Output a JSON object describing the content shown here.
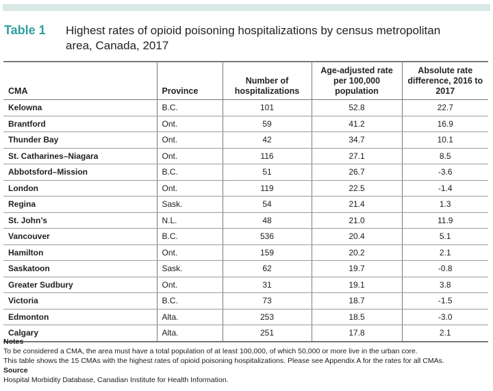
{
  "title": {
    "label": "Table 1",
    "text": "Highest rates of opioid poisoning hospitalizations by census metropolitan area, Canada, 2017"
  },
  "columns": [
    "CMA",
    "Province",
    "Number of hospitalizations",
    "Age-adjusted rate per 100,000 population",
    "Absolute rate difference, 2016 to 2017"
  ],
  "rows": [
    [
      "Kelowna",
      "B.C.",
      "101",
      "52.8",
      "22.7"
    ],
    [
      "Brantford",
      "Ont.",
      "59",
      "41.2",
      "16.9"
    ],
    [
      "Thunder Bay",
      "Ont.",
      "42",
      "34.7",
      "10.1"
    ],
    [
      "St. Catharines–Niagara",
      "Ont.",
      "116",
      "27.1",
      "8.5"
    ],
    [
      "Abbotsford–Mission",
      "B.C.",
      "51",
      "26.7",
      "-3.6"
    ],
    [
      "London",
      "Ont.",
      "119",
      "22.5",
      "-1.4"
    ],
    [
      "Regina",
      "Sask.",
      "54",
      "21.4",
      "1.3"
    ],
    [
      "St. John’s",
      "N.L.",
      "48",
      "21.0",
      "11.9"
    ],
    [
      "Vancouver",
      "B.C.",
      "536",
      "20.4",
      "5.1"
    ],
    [
      "Hamilton",
      "Ont.",
      "159",
      "20.2",
      "2.1"
    ],
    [
      "Saskatoon",
      "Sask.",
      "62",
      "19.7",
      "-0.8"
    ],
    [
      "Greater Sudbury",
      "Ont.",
      "31",
      "19.1",
      "3.8"
    ],
    [
      "Victoria",
      "B.C.",
      "73",
      "18.7",
      "-1.5"
    ],
    [
      "Edmonton",
      "Alta.",
      "253",
      "18.5",
      "-3.0"
    ],
    [
      "Calgary",
      "Alta.",
      "251",
      "17.8",
      "2.1"
    ]
  ],
  "notes": {
    "heading": "Notes",
    "line1": "To be considered a CMA, the area must have a total population of at least 100,000, of which 50,000 or more live in the urban core.",
    "line2": "This table shows the 15 CMAs with the highest rates of opioid poisoning hospitalizations. Please see Appendix A for the rates for all CMAs.",
    "source_heading": "Source",
    "source": "Hospital Morbidity Database, Canadian Institute for Health Information."
  },
  "colors": {
    "accent": "#2e9ea0",
    "top_bar": "#d7e8e6",
    "rule": "#777777"
  }
}
